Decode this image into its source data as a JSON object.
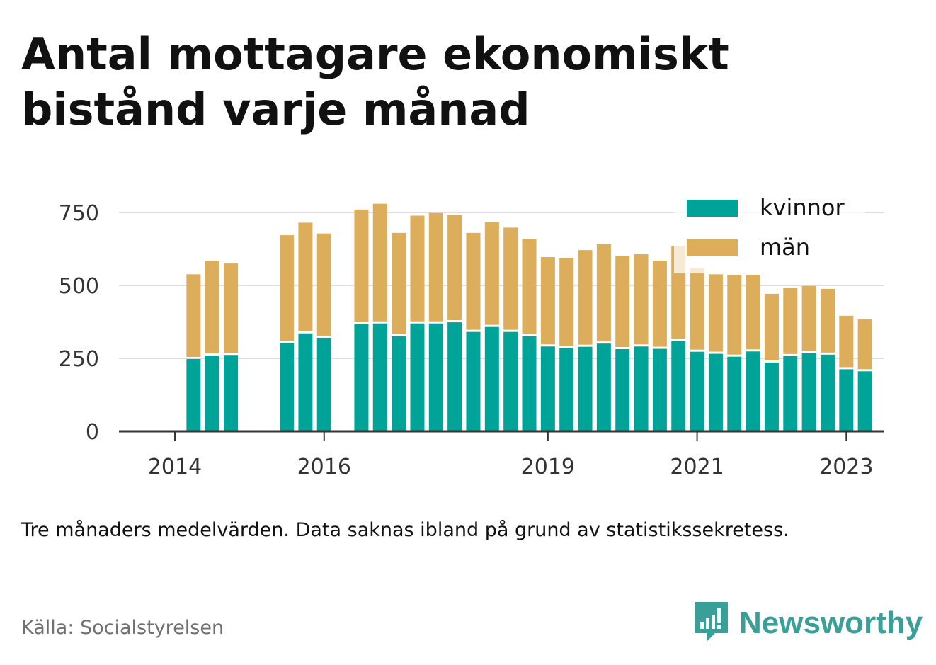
{
  "title": "Antal mottagare ekonomiskt bistånd varje månad",
  "note": "Tre månaders medelvärden. Data saknas ibland på grund av statistikssekretess.",
  "source": "Källa: Socialstyrelsen",
  "brand": {
    "name": "Newsworthy",
    "icon": "newsworthy-logo-icon",
    "color": "#3a9f96"
  },
  "chart_data": {
    "type": "bar",
    "stacked": true,
    "x_ticks": [
      "2014",
      "2016",
      "2019",
      "2021",
      "2023"
    ],
    "y_ticks": [
      0,
      250,
      500,
      750
    ],
    "ylim": [
      0,
      800
    ],
    "grid": true,
    "legend_position": "top-right",
    "x": [
      2014.25,
      2014.5,
      2014.75,
      2015.5,
      2015.75,
      2016.0,
      2016.5,
      2016.75,
      2017.0,
      2017.25,
      2017.5,
      2017.75,
      2018.0,
      2018.25,
      2018.5,
      2018.75,
      2019.0,
      2019.25,
      2019.5,
      2019.75,
      2020.0,
      2020.25,
      2020.5,
      2020.75,
      2021.0,
      2021.25,
      2021.5,
      2021.75,
      2022.0,
      2022.25,
      2022.5,
      2022.75,
      2023.0,
      2023.25
    ],
    "series": [
      {
        "name": "kvinnor",
        "color": "#00a398",
        "values": [
          250,
          262,
          264,
          305,
          338,
          323,
          370,
          372,
          328,
          372,
          372,
          376,
          343,
          360,
          343,
          328,
          293,
          287,
          292,
          303,
          284,
          293,
          285,
          312,
          275,
          268,
          258,
          276,
          238,
          260,
          270,
          265,
          215,
          208
        ]
      },
      {
        "name": "män",
        "color": "#dcad5a",
        "values": [
          288,
          323,
          311,
          367,
          377,
          355,
          390,
          408,
          352,
          367,
          376,
          366,
          337,
          357,
          355,
          332,
          304,
          307,
          329,
          338,
          317,
          314,
          300,
          322,
          284,
          270,
          278,
          260,
          233,
          232,
          228,
          223,
          181,
          176
        ]
      }
    ]
  }
}
